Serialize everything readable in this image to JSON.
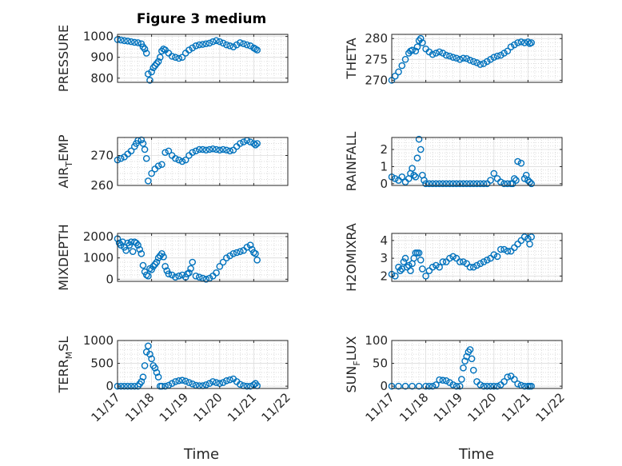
{
  "figure": {
    "title": "Figure 3 medium",
    "x_label": "Time",
    "x_ticks": [
      "11/17",
      "11/18",
      "11/19",
      "11/20",
      "11/21",
      "11/22"
    ],
    "marker_color": "#0072BD"
  },
  "chart_data": [
    {
      "type": "scatter",
      "ylabel_main": "PRESSURE",
      "ylabel_sub": "",
      "ylim": [
        780,
        1010
      ],
      "yticks": [
        "800",
        "900",
        "1000"
      ],
      "ytick_values": [
        800,
        900,
        1000
      ],
      "xlim": [
        0,
        5
      ],
      "xtick_values": [
        0,
        1,
        2,
        3,
        4,
        5
      ],
      "grid": true,
      "series": [
        {
          "x": [
            0,
            0.1,
            0.2,
            0.3,
            0.4,
            0.5,
            0.6,
            0.7,
            0.75,
            0.8,
            0.85,
            0.9,
            0.95,
            1.0,
            1.05,
            1.1,
            1.15,
            1.2,
            1.25,
            1.3,
            1.35,
            1.4,
            1.5,
            1.6,
            1.7,
            1.8,
            1.9,
            2.0,
            2.1,
            2.2,
            2.3,
            2.4,
            2.5,
            2.6,
            2.7,
            2.8,
            2.9,
            3.0,
            3.1,
            3.2,
            3.3,
            3.4,
            3.5,
            3.6,
            3.7,
            3.8,
            3.9,
            4.0,
            4.05,
            4.1
          ],
          "y": [
            985,
            983,
            980,
            978,
            975,
            972,
            970,
            965,
            950,
            940,
            920,
            820,
            790,
            830,
            850,
            860,
            870,
            880,
            900,
            930,
            940,
            935,
            920,
            905,
            900,
            895,
            900,
            920,
            935,
            945,
            955,
            960,
            962,
            965,
            968,
            975,
            980,
            975,
            968,
            960,
            955,
            950,
            960,
            970,
            965,
            960,
            955,
            945,
            940,
            935
          ]
        }
      ]
    },
    {
      "type": "scatter",
      "ylabel_main": "THETA",
      "ylabel_sub": "",
      "ylim": [
        269.5,
        281
      ],
      "yticks": [
        "270",
        "275",
        "280"
      ],
      "ytick_values": [
        270,
        275,
        280
      ],
      "xlim": [
        0,
        5
      ],
      "xtick_values": [
        0,
        1,
        2,
        3,
        4,
        5
      ],
      "grid": true,
      "series": [
        {
          "x": [
            0,
            0.1,
            0.2,
            0.3,
            0.4,
            0.5,
            0.55,
            0.6,
            0.7,
            0.75,
            0.8,
            0.85,
            0.9,
            1.0,
            1.1,
            1.2,
            1.3,
            1.4,
            1.5,
            1.6,
            1.7,
            1.8,
            1.9,
            2.0,
            2.1,
            2.2,
            2.3,
            2.4,
            2.5,
            2.6,
            2.7,
            2.8,
            2.9,
            3.0,
            3.1,
            3.2,
            3.3,
            3.4,
            3.5,
            3.6,
            3.7,
            3.8,
            3.9,
            4.0,
            4.05,
            4.1
          ],
          "y": [
            270,
            271,
            272,
            273.5,
            275,
            276.5,
            277,
            277.2,
            277,
            278,
            279.5,
            280,
            279,
            277.5,
            276.8,
            276.2,
            276.5,
            276.8,
            276.5,
            276,
            275.8,
            275.5,
            275.3,
            275,
            275.3,
            275.2,
            274.8,
            274.5,
            274.2,
            273.8,
            274,
            274.5,
            275,
            275.5,
            275.8,
            276,
            276.5,
            277,
            278,
            278.5,
            279,
            279.2,
            279,
            279.2,
            278.8,
            279
          ]
        }
      ]
    },
    {
      "type": "scatter",
      "ylabel_main": "AIR",
      "ylabel_sub": "T",
      "ylabel_tail": "EMP",
      "ylim": [
        260,
        276
      ],
      "yticks": [
        "260",
        "270"
      ],
      "ytick_values": [
        260,
        270
      ],
      "xlim": [
        0,
        5
      ],
      "xtick_values": [
        0,
        1,
        2,
        3,
        4,
        5
      ],
      "grid": true,
      "series": [
        {
          "x": [
            0,
            0.1,
            0.2,
            0.3,
            0.4,
            0.5,
            0.55,
            0.6,
            0.7,
            0.75,
            0.8,
            0.85,
            0.9,
            1.0,
            1.1,
            1.2,
            1.3,
            1.4,
            1.5,
            1.6,
            1.7,
            1.8,
            1.9,
            2.0,
            2.1,
            2.2,
            2.3,
            2.4,
            2.5,
            2.6,
            2.7,
            2.8,
            2.9,
            3.0,
            3.1,
            3.2,
            3.3,
            3.4,
            3.5,
            3.6,
            3.7,
            3.8,
            3.9,
            4.0,
            4.05,
            4.1
          ],
          "y": [
            268.5,
            269,
            269.5,
            270.5,
            271.5,
            273,
            274,
            275,
            275.2,
            274,
            272,
            269,
            261.5,
            264,
            265.5,
            266.5,
            267,
            271,
            271.5,
            270,
            269,
            268.5,
            268,
            268.5,
            270,
            271,
            271.5,
            272,
            272,
            271.8,
            272,
            272.2,
            272,
            271.8,
            272,
            271.8,
            271.5,
            271.8,
            273,
            274,
            274.5,
            275,
            274.5,
            274,
            273.5,
            274
          ]
        }
      ]
    },
    {
      "type": "scatter",
      "ylabel_main": "RAINFALL",
      "ylabel_sub": "",
      "ylim": [
        -0.1,
        2.7
      ],
      "yticks": [
        "0",
        "1",
        "2"
      ],
      "ytick_values": [
        0,
        1,
        2
      ],
      "xlim": [
        0,
        5
      ],
      "xtick_values": [
        0,
        1,
        2,
        3,
        4,
        5
      ],
      "grid": true,
      "series": [
        {
          "x": [
            0,
            0.1,
            0.2,
            0.3,
            0.4,
            0.5,
            0.55,
            0.6,
            0.65,
            0.7,
            0.75,
            0.8,
            0.85,
            0.9,
            0.95,
            1.0,
            1.1,
            1.2,
            1.3,
            1.4,
            1.5,
            1.6,
            1.7,
            1.8,
            1.9,
            2.0,
            2.1,
            2.2,
            2.3,
            2.4,
            2.5,
            2.6,
            2.7,
            2.8,
            2.9,
            3.0,
            3.1,
            3.2,
            3.3,
            3.4,
            3.5,
            3.55,
            3.6,
            3.65,
            3.7,
            3.8,
            3.9,
            3.95,
            4.0,
            4.05,
            4.1
          ],
          "y": [
            0.4,
            0.3,
            0.2,
            0.4,
            0.1,
            0.3,
            0.6,
            0.9,
            0.5,
            0.4,
            1.5,
            2.6,
            2.0,
            0.5,
            0.2,
            0,
            0,
            0,
            0,
            0,
            0,
            0,
            0,
            0,
            0,
            0,
            0,
            0,
            0,
            0,
            0,
            0,
            0,
            0,
            0.2,
            0.6,
            0.3,
            0.1,
            0,
            0,
            0,
            0,
            0.3,
            0.2,
            1.3,
            1.2,
            0.3,
            0.5,
            0.2,
            0.1,
            0
          ]
        }
      ]
    },
    {
      "type": "scatter",
      "ylabel_main": "MIXDEPTH",
      "ylabel_sub": "",
      "ylim": [
        -100,
        2150
      ],
      "yticks": [
        "0",
        "1000",
        "2000"
      ],
      "ytick_values": [
        0,
        1000,
        2000
      ],
      "xlim": [
        0,
        5
      ],
      "xtick_values": [
        0,
        1,
        2,
        3,
        4,
        5
      ],
      "grid": true,
      "series": [
        {
          "x": [
            0,
            0.05,
            0.1,
            0.15,
            0.2,
            0.25,
            0.3,
            0.35,
            0.4,
            0.45,
            0.5,
            0.55,
            0.6,
            0.65,
            0.7,
            0.75,
            0.8,
            0.85,
            0.9,
            0.95,
            1.0,
            1.05,
            1.1,
            1.15,
            1.2,
            1.25,
            1.3,
            1.35,
            1.4,
            1.45,
            1.5,
            1.6,
            1.7,
            1.8,
            1.9,
            2.0,
            2.05,
            2.1,
            2.15,
            2.2,
            2.3,
            2.4,
            2.5,
            2.6,
            2.7,
            2.8,
            2.9,
            3.0,
            3.1,
            3.2,
            3.3,
            3.4,
            3.5,
            3.6,
            3.7,
            3.8,
            3.9,
            3.95,
            4.0,
            4.05,
            4.1
          ],
          "y": [
            1900,
            1700,
            1600,
            1750,
            1500,
            1350,
            1700,
            1600,
            1750,
            1300,
            1750,
            1700,
            1600,
            1400,
            1200,
            650,
            350,
            200,
            150,
            500,
            450,
            600,
            700,
            800,
            1000,
            1100,
            1200,
            1050,
            600,
            400,
            250,
            200,
            100,
            150,
            200,
            100,
            250,
            300,
            500,
            800,
            150,
            100,
            50,
            0,
            50,
            150,
            300,
            600,
            800,
            1000,
            1100,
            1200,
            1250,
            1300,
            1350,
            1500,
            1600,
            1400,
            1250,
            1200,
            900
          ]
        }
      ]
    },
    {
      "type": "scatter",
      "ylabel_main": "H2OMIXRA",
      "ylabel_sub": "",
      "ylim": [
        1.7,
        4.4
      ],
      "yticks": [
        "2",
        "3",
        "4"
      ],
      "ytick_values": [
        2,
        3,
        4
      ],
      "xlim": [
        0,
        5
      ],
      "xtick_values": [
        0,
        1,
        2,
        3,
        4,
        5
      ],
      "grid": true,
      "series": [
        {
          "x": [
            0,
            0.1,
            0.2,
            0.25,
            0.3,
            0.35,
            0.4,
            0.45,
            0.5,
            0.55,
            0.6,
            0.65,
            0.7,
            0.75,
            0.8,
            0.85,
            0.9,
            1.0,
            1.1,
            1.2,
            1.3,
            1.4,
            1.5,
            1.6,
            1.7,
            1.8,
            1.9,
            2.0,
            2.1,
            2.2,
            2.3,
            2.4,
            2.5,
            2.6,
            2.7,
            2.8,
            2.9,
            3.0,
            3.1,
            3.2,
            3.3,
            3.4,
            3.5,
            3.6,
            3.7,
            3.8,
            3.9,
            4.0,
            4.05,
            4.1
          ],
          "y": [
            2.1,
            2.0,
            2.5,
            2.3,
            2.4,
            2.8,
            3.0,
            2.5,
            2.6,
            2.3,
            2.7,
            3.0,
            3.3,
            3.3,
            3.3,
            2.9,
            2.4,
            2.0,
            2.3,
            2.5,
            2.6,
            2.5,
            2.8,
            2.8,
            3.0,
            3.1,
            3.0,
            2.8,
            2.8,
            2.7,
            2.5,
            2.5,
            2.6,
            2.7,
            2.8,
            2.9,
            3.0,
            3.2,
            3.1,
            3.5,
            3.5,
            3.4,
            3.4,
            3.6,
            3.8,
            4.0,
            4.2,
            4.1,
            3.8,
            4.2
          ]
        }
      ]
    },
    {
      "type": "scatter",
      "ylabel_main": "TERR",
      "ylabel_sub": "M",
      "ylabel_tail": "SL",
      "ylim": [
        -50,
        1000
      ],
      "yticks": [
        "0",
        "500",
        "1000"
      ],
      "ytick_values": [
        0,
        500,
        1000
      ],
      "xlim": [
        0,
        5
      ],
      "xtick_values": [
        0,
        1,
        2,
        3,
        4,
        5
      ],
      "grid": true,
      "series": [
        {
          "x": [
            0,
            0.1,
            0.2,
            0.3,
            0.4,
            0.5,
            0.6,
            0.65,
            0.7,
            0.75,
            0.8,
            0.85,
            0.9,
            0.95,
            1.0,
            1.05,
            1.1,
            1.15,
            1.2,
            1.25,
            1.3,
            1.4,
            1.5,
            1.6,
            1.7,
            1.8,
            1.9,
            2.0,
            2.1,
            2.2,
            2.3,
            2.4,
            2.5,
            2.6,
            2.7,
            2.8,
            2.9,
            3.0,
            3.1,
            3.2,
            3.3,
            3.4,
            3.5,
            3.6,
            3.7,
            3.8,
            3.9,
            4.0,
            4.05,
            4.1
          ],
          "y": [
            0,
            0,
            0,
            0,
            0,
            0,
            0,
            50,
            100,
            200,
            450,
            750,
            880,
            700,
            600,
            450,
            400,
            300,
            200,
            0,
            0,
            0,
            20,
            60,
            100,
            120,
            130,
            110,
            80,
            50,
            20,
            10,
            10,
            30,
            60,
            100,
            80,
            60,
            80,
            120,
            140,
            160,
            100,
            40,
            10,
            0,
            0,
            30,
            60,
            10
          ]
        }
      ]
    },
    {
      "type": "scatter",
      "ylabel_main": "SUN",
      "ylabel_sub": "F",
      "ylabel_tail": "LUX",
      "ylim": [
        -5,
        100
      ],
      "yticks": [
        "0",
        "50",
        "100"
      ],
      "ytick_values": [
        0,
        50,
        100
      ],
      "xlim": [
        0,
        5
      ],
      "xtick_values": [
        0,
        1,
        2,
        3,
        4,
        5
      ],
      "grid": true,
      "series": [
        {
          "x": [
            0,
            0.2,
            0.4,
            0.6,
            0.8,
            1.0,
            1.1,
            1.2,
            1.3,
            1.4,
            1.5,
            1.6,
            1.7,
            1.8,
            1.9,
            2.0,
            2.05,
            2.1,
            2.15,
            2.2,
            2.25,
            2.3,
            2.35,
            2.4,
            2.5,
            2.6,
            2.7,
            2.8,
            2.9,
            3.0,
            3.1,
            3.2,
            3.3,
            3.4,
            3.5,
            3.6,
            3.7,
            3.8,
            3.9,
            4.0,
            4.05,
            4.1
          ],
          "y": [
            0,
            0,
            0,
            0,
            0,
            0,
            0,
            0,
            3,
            14,
            13,
            12,
            8,
            3,
            0,
            0,
            15,
            40,
            55,
            65,
            75,
            80,
            60,
            35,
            10,
            3,
            0,
            0,
            0,
            0,
            0,
            3,
            10,
            20,
            22,
            15,
            5,
            2,
            0,
            0,
            0,
            0
          ]
        }
      ]
    }
  ]
}
